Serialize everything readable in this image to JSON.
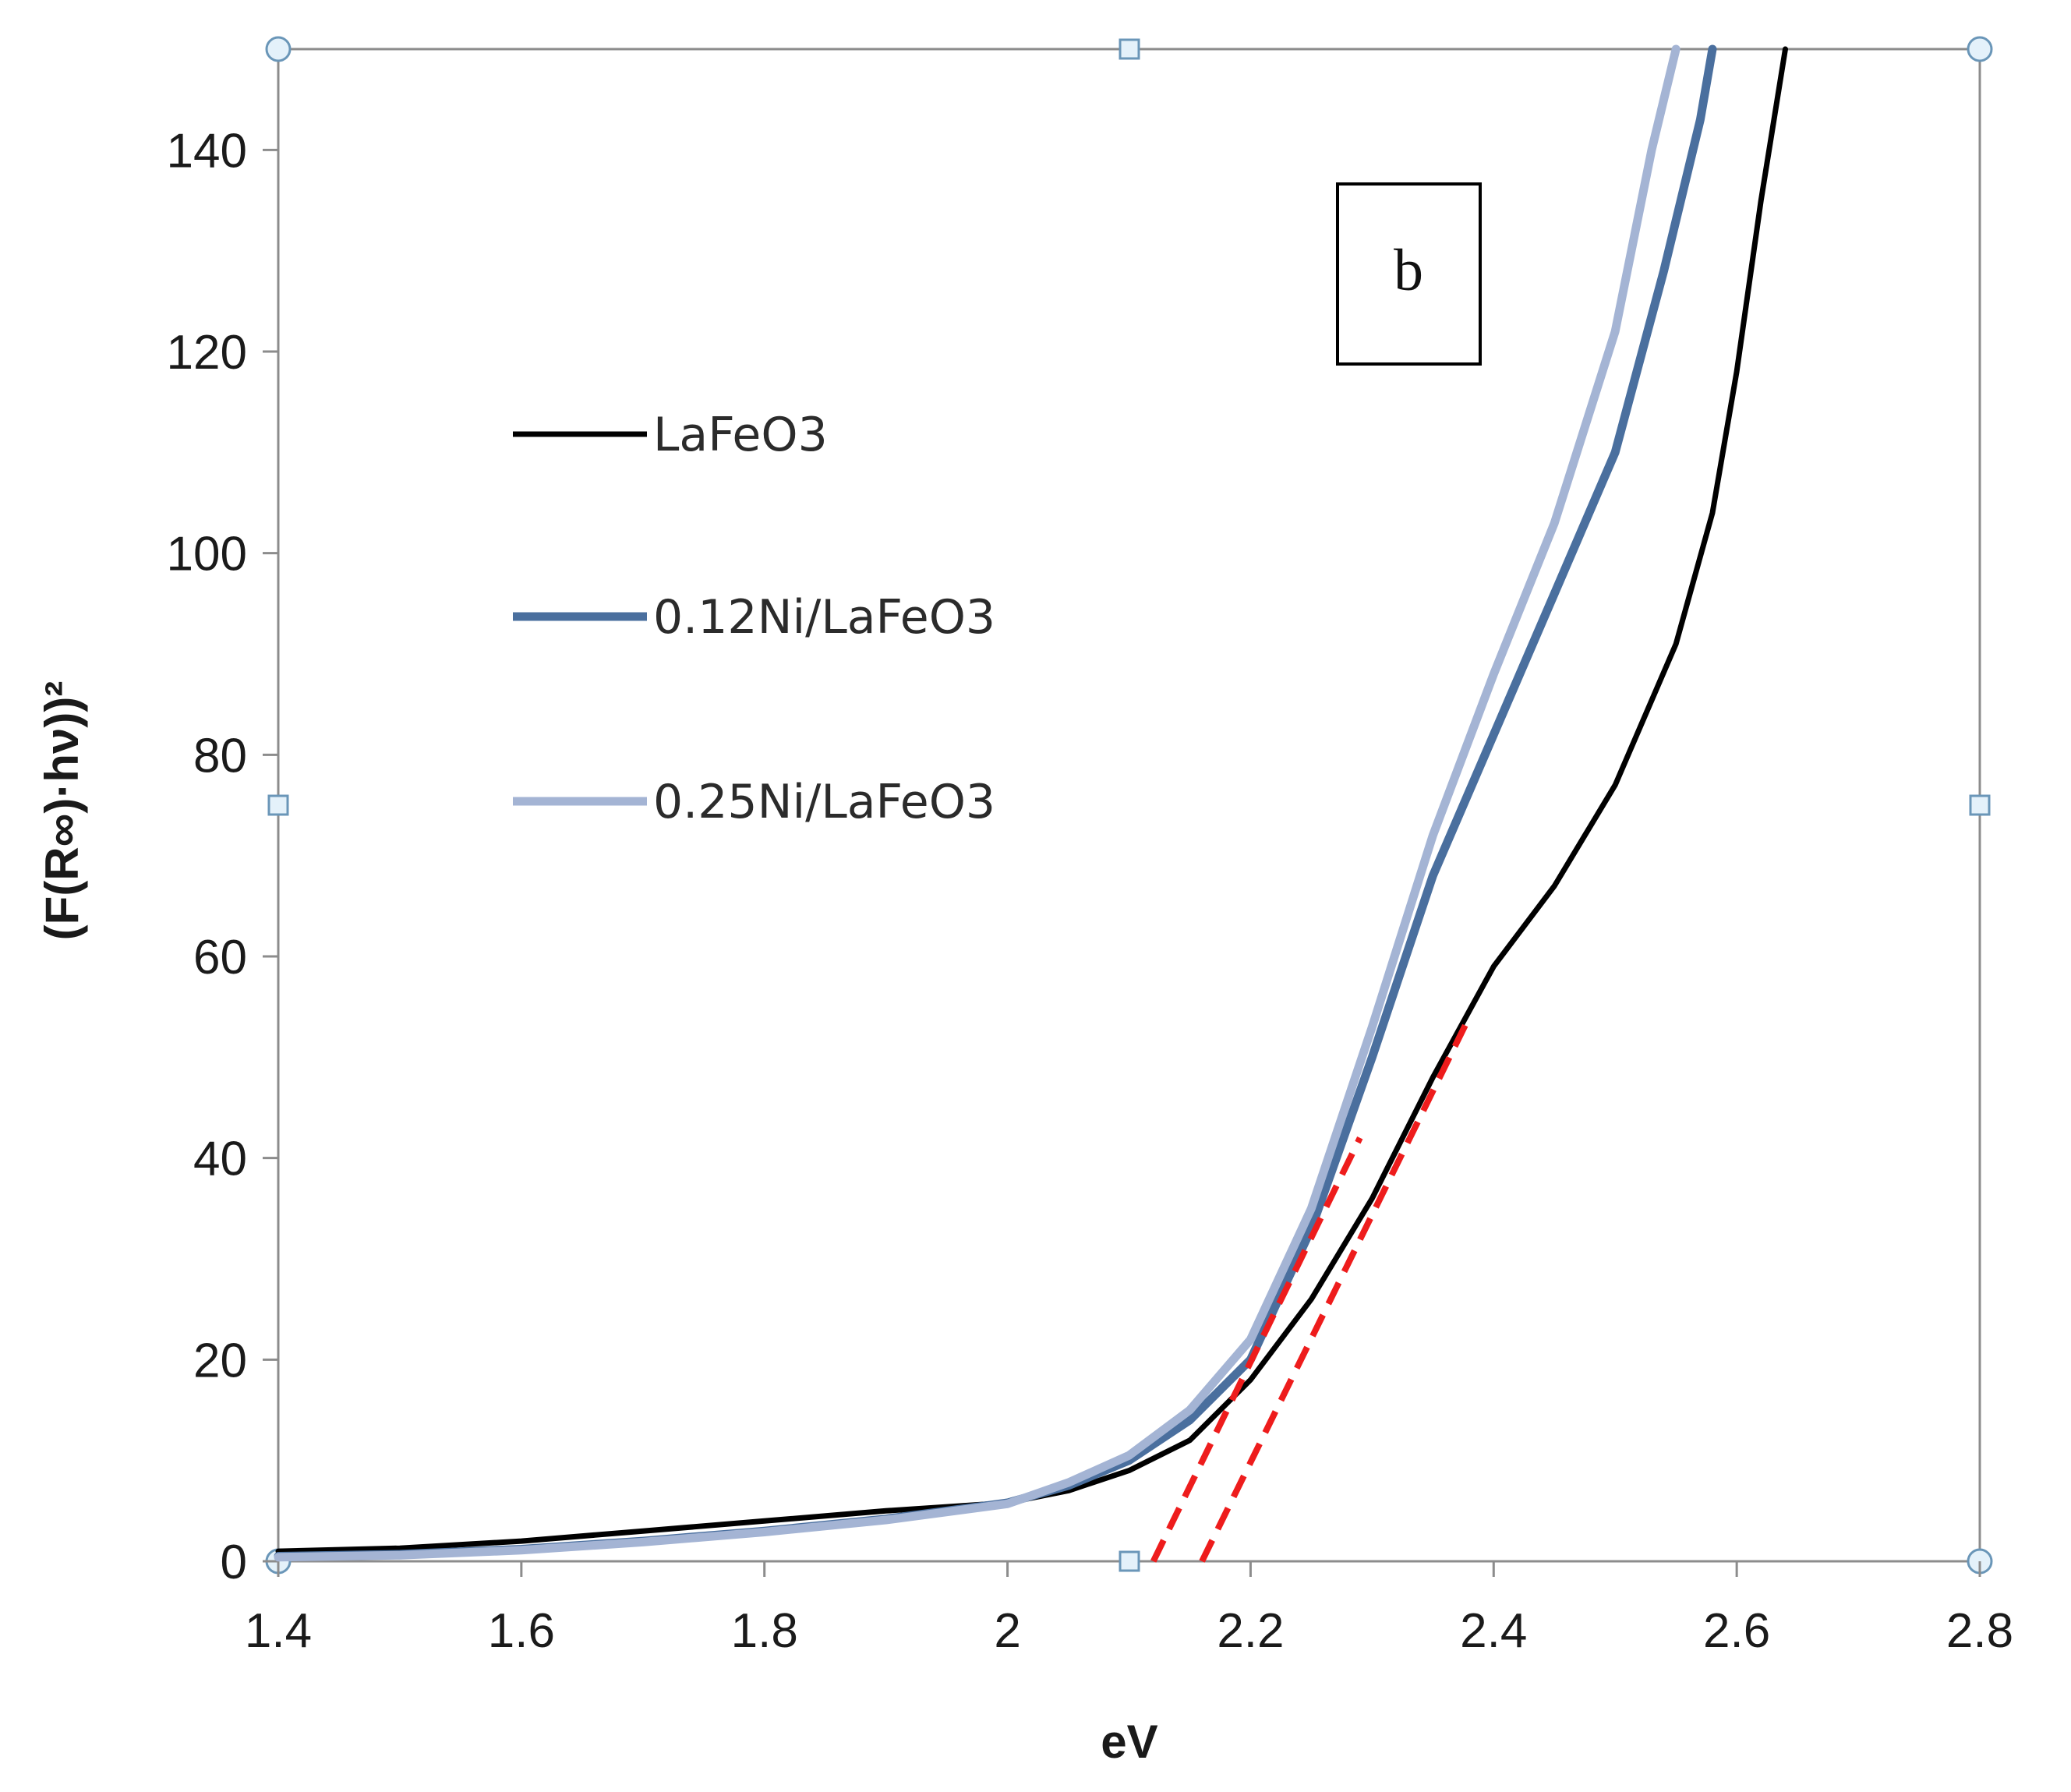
{
  "chart_data": {
    "type": "line",
    "title": "",
    "xlabel": "eV",
    "ylabel": "(F(R∞)·hν))²",
    "xlim": [
      1.4,
      2.8
    ],
    "ylim": [
      0,
      150
    ],
    "x_ticks": [
      "1.4",
      "1.6",
      "1.8",
      "2",
      "2.2",
      "2.4",
      "2.6",
      "2.8"
    ],
    "y_ticks": [
      "0",
      "20",
      "40",
      "60",
      "80",
      "100",
      "120",
      "140"
    ],
    "panel_label": "b",
    "legend_position": "left-upper",
    "series": [
      {
        "name": "LaFeO3",
        "color": "#000000",
        "x": [
          1.4,
          1.5,
          1.6,
          1.7,
          1.8,
          1.9,
          2.0,
          2.05,
          2.1,
          2.15,
          2.2,
          2.25,
          2.3,
          2.35,
          2.4,
          2.45,
          2.5,
          2.55,
          2.58,
          2.6,
          2.62,
          2.64
        ],
        "y": [
          1,
          1.3,
          2,
          3,
          4,
          5,
          5.8,
          7,
          9,
          12,
          18,
          26,
          36,
          48,
          59,
          67,
          77,
          91,
          104,
          118,
          135,
          150
        ]
      },
      {
        "name": "0.12Ni/LaFeO3",
        "color": "#4a6f9e",
        "x": [
          1.4,
          1.5,
          1.6,
          1.7,
          1.8,
          1.9,
          2.0,
          2.05,
          2.1,
          2.15,
          2.2,
          2.25,
          2.3,
          2.35,
          2.4,
          2.45,
          2.5,
          2.54,
          2.57,
          2.58
        ],
        "y": [
          0.5,
          0.7,
          1.2,
          2,
          3,
          4.2,
          5.8,
          7.5,
          10,
          14,
          20,
          33,
          50,
          68,
          82,
          96,
          110,
          128,
          143,
          150
        ]
      },
      {
        "name": "0.25Ni/LaFeO3",
        "color": "#a4b4d4",
        "x": [
          1.4,
          1.5,
          1.6,
          1.7,
          1.8,
          1.9,
          2.0,
          2.05,
          2.1,
          2.15,
          2.2,
          2.25,
          2.3,
          2.35,
          2.4,
          2.45,
          2.5,
          2.53,
          2.55
        ],
        "y": [
          0.4,
          0.6,
          1.1,
          1.9,
          2.9,
          4.1,
          5.7,
          7.8,
          10.5,
          15,
          22,
          35,
          53,
          72,
          88,
          103,
          122,
          140,
          150
        ]
      }
    ],
    "tangent_lines": [
      {
        "color": "#ee1c1c",
        "x": [
          2.12,
          2.29
        ],
        "y": [
          0,
          42
        ]
      },
      {
        "color": "#ee1c1c",
        "x": [
          2.16,
          2.38
        ],
        "y": [
          0,
          54
        ]
      }
    ]
  }
}
